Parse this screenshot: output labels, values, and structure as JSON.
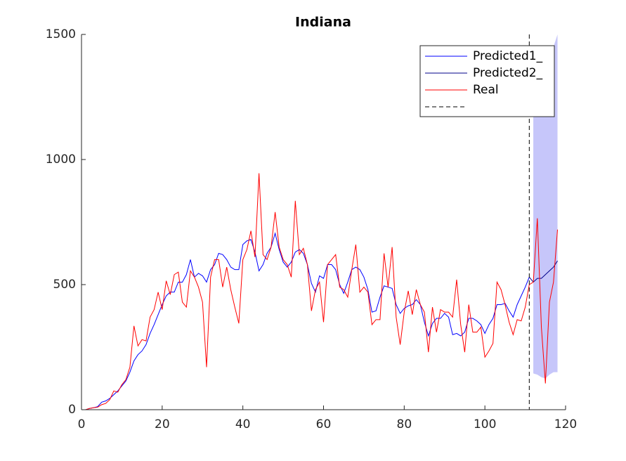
{
  "chart_data": {
    "type": "line",
    "title": "Indiana",
    "xlim": [
      0,
      120
    ],
    "xticks": [
      0,
      20,
      40,
      60,
      80,
      100,
      120
    ],
    "ylim": [
      0,
      1500
    ],
    "yticks": [
      0,
      500,
      1000,
      1500
    ],
    "grid": false,
    "legend": "northeast",
    "series": [
      {
        "name": "Predicted1_",
        "color": "#0000ff",
        "x": [
          1,
          2,
          3,
          4,
          5,
          6,
          7,
          8,
          9,
          10,
          11,
          12,
          13,
          14,
          15,
          16,
          17,
          18,
          19,
          20,
          21,
          22,
          23,
          24,
          25,
          26,
          27,
          28,
          29,
          30,
          31,
          32,
          33,
          34,
          35,
          36,
          37,
          38,
          39,
          40,
          41,
          42,
          43,
          44,
          45,
          46,
          47,
          48,
          49,
          50,
          51,
          52,
          53,
          54,
          55,
          56,
          57,
          58,
          59,
          60,
          61,
          62,
          63,
          64,
          65,
          66,
          67,
          68,
          69,
          70,
          71,
          72,
          73,
          74,
          75,
          76,
          77,
          78,
          79,
          80,
          81,
          82,
          83,
          84,
          85,
          86,
          87,
          88,
          89,
          90,
          91,
          92,
          93,
          94,
          95,
          96,
          97,
          98,
          99,
          100,
          101,
          102,
          103,
          104,
          105,
          106,
          107,
          108,
          109,
          110,
          111
        ],
        "values": [
          0,
          5,
          8,
          12,
          30,
          35,
          45,
          60,
          75,
          95,
          115,
          150,
          195,
          220,
          235,
          260,
          305,
          340,
          380,
          420,
          455,
          470,
          470,
          510,
          510,
          540,
          600,
          530,
          545,
          535,
          510,
          560,
          580,
          625,
          620,
          600,
          570,
          560,
          560,
          660,
          675,
          680,
          630,
          555,
          580,
          625,
          650,
          705,
          640,
          590,
          570,
          590,
          630,
          640,
          625,
          580,
          505,
          470,
          535,
          525,
          580,
          580,
          560,
          500,
          465,
          510,
          560,
          570,
          560,
          530,
          480,
          390,
          395,
          450,
          495,
          490,
          485,
          420,
          385,
          405,
          415,
          420,
          440,
          420,
          350,
          295,
          345,
          365,
          365,
          385,
          370,
          300,
          305,
          295,
          310,
          365,
          365,
          355,
          340,
          305,
          340,
          365,
          420,
          420,
          425,
          395,
          370,
          420,
          455,
          490,
          530
        ]
      },
      {
        "name": "Predicted2_",
        "color": "#00008b",
        "x": [
          111,
          112,
          113,
          114,
          115,
          116,
          117,
          118
        ],
        "values": [
          530,
          510,
          525,
          525,
          540,
          555,
          570,
          595
        ]
      },
      {
        "name": "Real",
        "color": "#ff0000",
        "x": [
          1,
          2,
          3,
          4,
          5,
          6,
          7,
          8,
          9,
          10,
          11,
          12,
          13,
          14,
          15,
          16,
          17,
          18,
          19,
          20,
          21,
          22,
          23,
          24,
          25,
          26,
          27,
          28,
          29,
          30,
          31,
          32,
          33,
          34,
          35,
          36,
          37,
          38,
          39,
          40,
          41,
          42,
          43,
          44,
          45,
          46,
          47,
          48,
          49,
          50,
          51,
          52,
          53,
          54,
          55,
          56,
          57,
          58,
          59,
          60,
          61,
          62,
          63,
          64,
          65,
          66,
          67,
          68,
          69,
          70,
          71,
          72,
          73,
          74,
          75,
          76,
          77,
          78,
          79,
          80,
          81,
          82,
          83,
          84,
          85,
          86,
          87,
          88,
          89,
          90,
          91,
          92,
          93,
          94,
          95,
          96,
          97,
          98,
          99,
          100,
          101,
          102,
          103,
          104,
          105,
          106,
          107,
          108,
          109,
          110,
          111,
          112,
          113,
          114,
          115,
          116,
          117,
          118
        ],
        "values": [
          0,
          5,
          8,
          10,
          20,
          25,
          40,
          75,
          70,
          100,
          120,
          170,
          335,
          255,
          280,
          275,
          370,
          400,
          470,
          400,
          515,
          460,
          540,
          550,
          430,
          410,
          555,
          530,
          490,
          430,
          170,
          530,
          600,
          600,
          490,
          570,
          480,
          410,
          345,
          600,
          640,
          715,
          610,
          945,
          620,
          600,
          650,
          790,
          650,
          600,
          580,
          530,
          835,
          620,
          645,
          580,
          395,
          480,
          510,
          350,
          580,
          600,
          620,
          490,
          480,
          450,
          560,
          660,
          470,
          490,
          470,
          340,
          360,
          360,
          625,
          490,
          650,
          370,
          260,
          390,
          475,
          380,
          480,
          420,
          390,
          230,
          410,
          310,
          400,
          390,
          390,
          370,
          520,
          340,
          230,
          420,
          310,
          310,
          330,
          210,
          235,
          265,
          510,
          480,
          420,
          350,
          300,
          360,
          355,
          410,
          500,
          510,
          765,
          330,
          105,
          430,
          510,
          720
        ]
      }
    ],
    "band": {
      "color": "#c6c6fa",
      "x": [
        112,
        113,
        114,
        115,
        116,
        117,
        118
      ],
      "lower": [
        145,
        140,
        130,
        125,
        140,
        150,
        150
      ],
      "upper": [
        1200,
        1250,
        1300,
        1350,
        1400,
        1450,
        1500
      ]
    },
    "vline": {
      "x": 111,
      "color": "#000000"
    }
  }
}
